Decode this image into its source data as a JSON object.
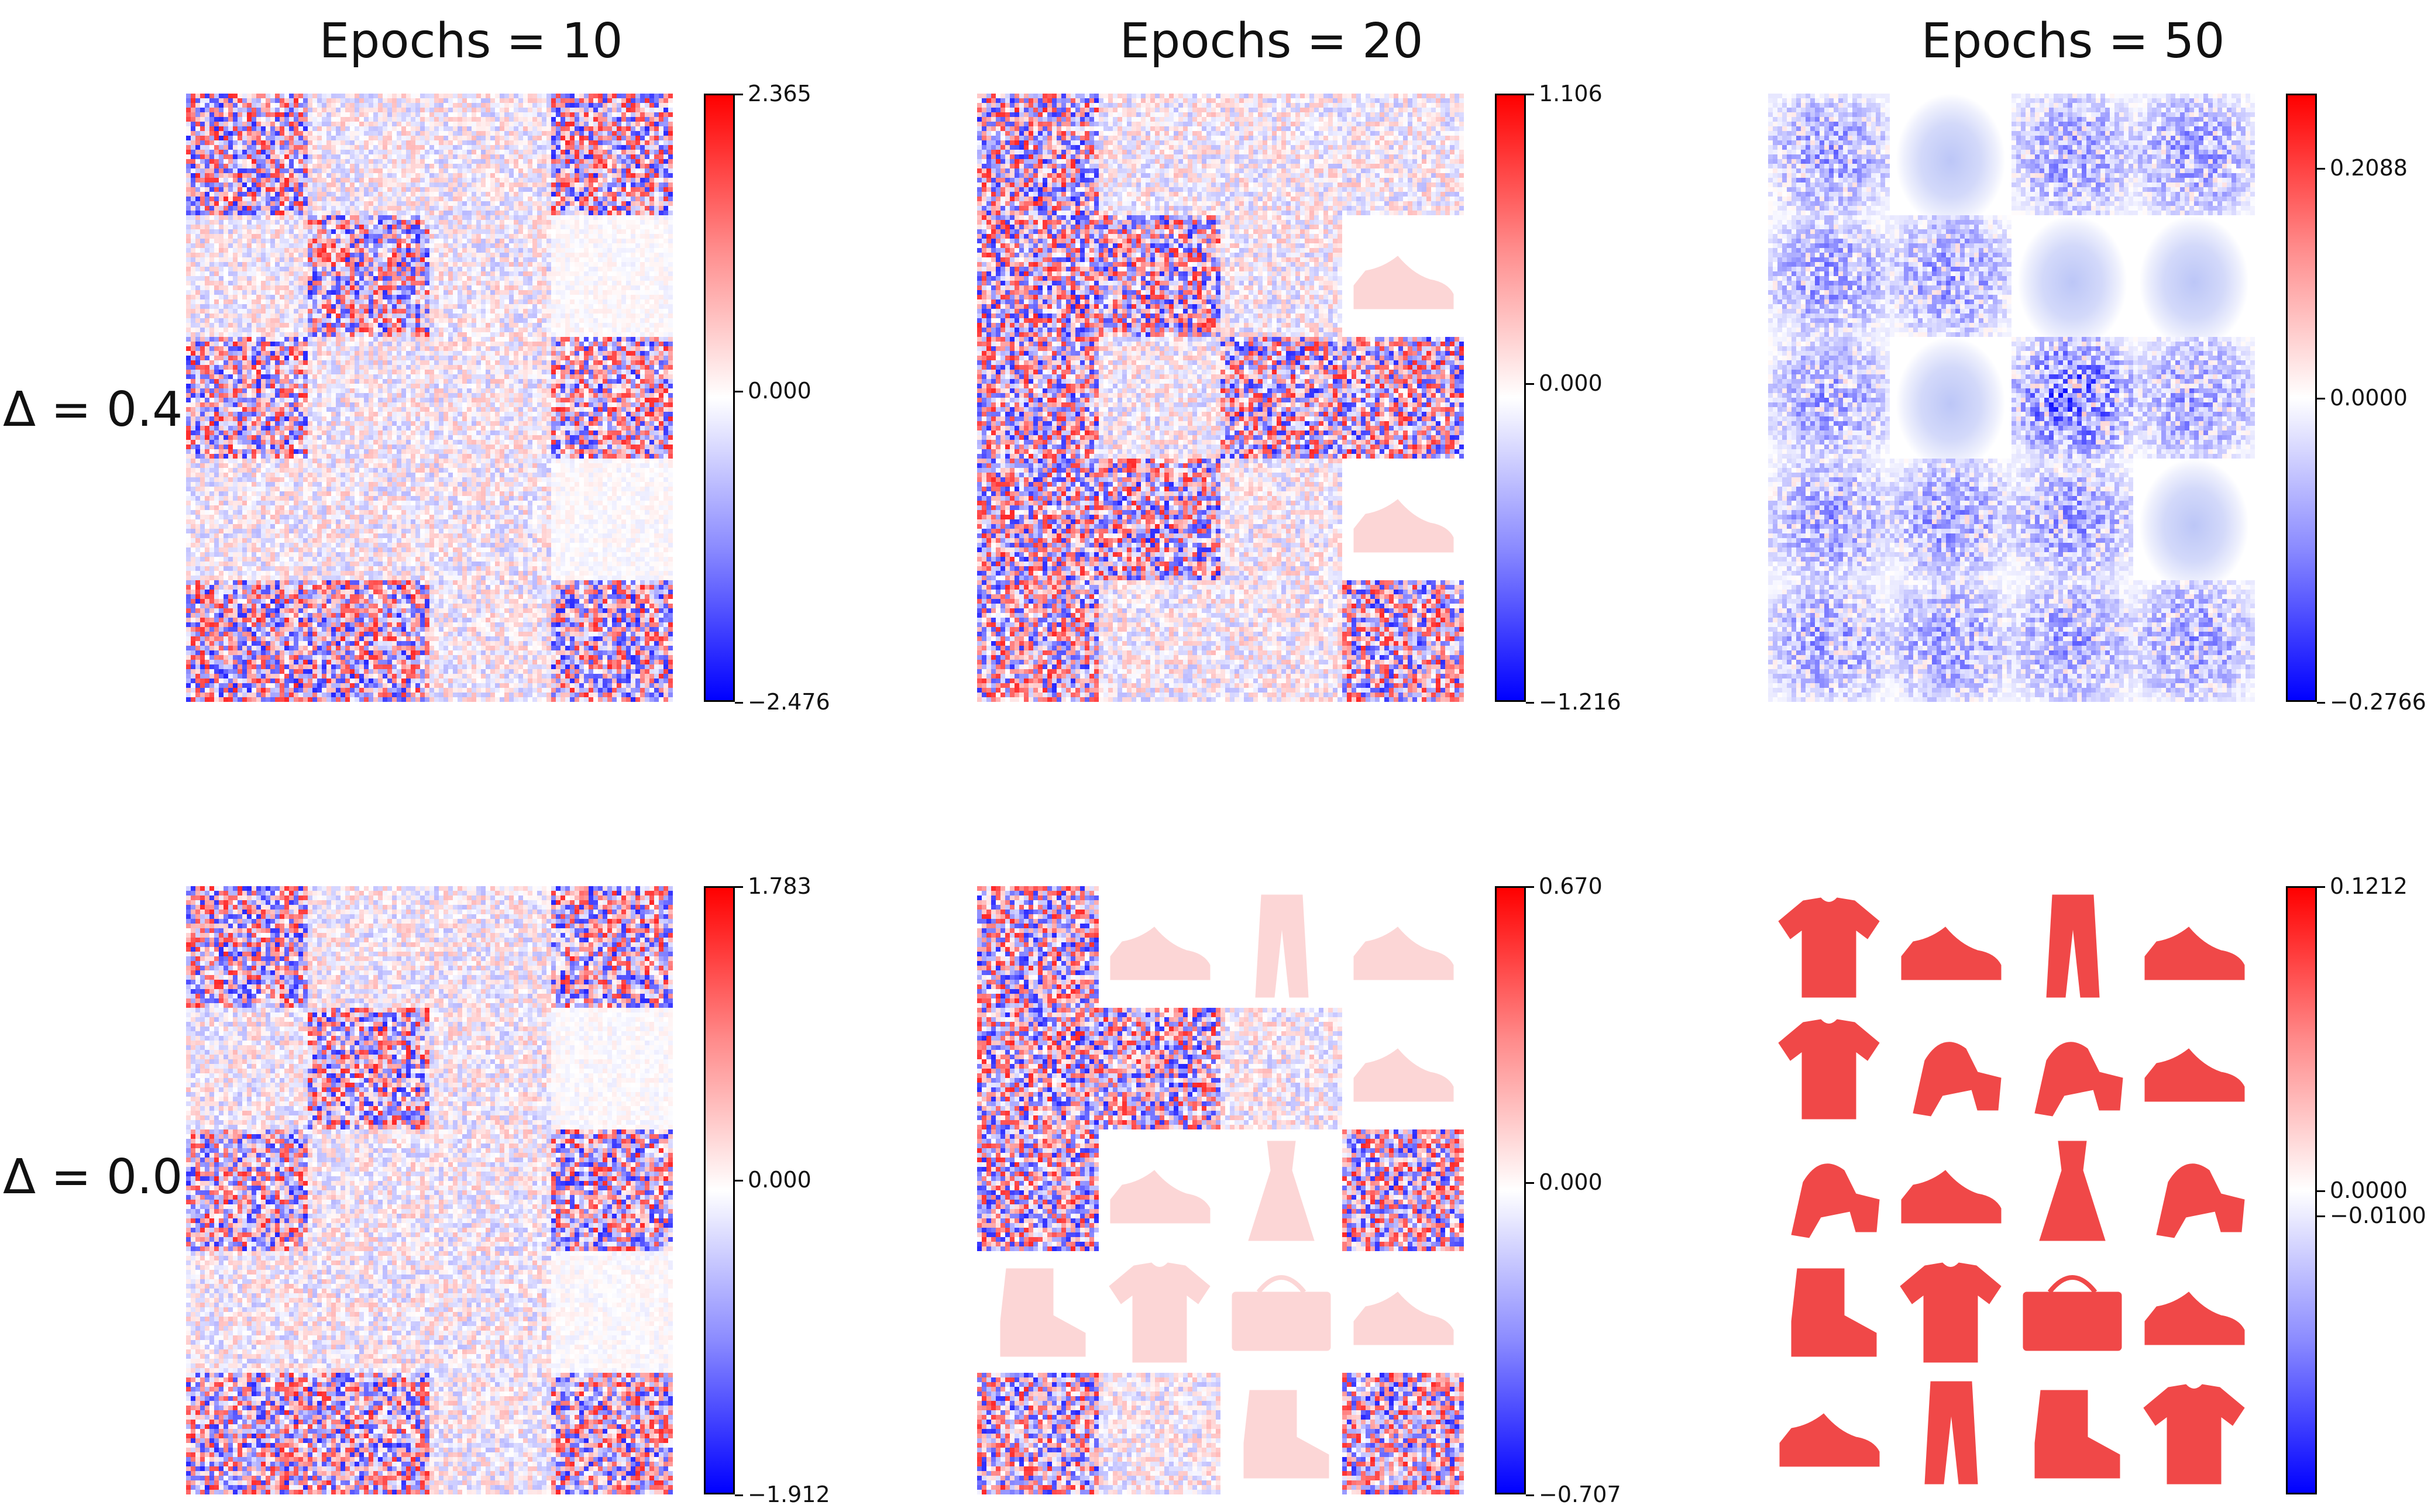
{
  "chart_data": {
    "type": "heatmap",
    "columns": [
      "Epochs = 10",
      "Epochs = 20",
      "Epochs = 50"
    ],
    "rows": [
      "Δ = 0.4",
      "Δ = 0.0"
    ],
    "grid": {
      "rows": 5,
      "cols": 4
    },
    "colormap": "bwr",
    "panels": [
      {
        "row": 0,
        "col": 0,
        "colorbar": {
          "max": 2.365,
          "min": -2.476,
          "ticks": [
            "2.365",
            "0.000",
            "−2.476"
          ],
          "tick_values": [
            2.365,
            0,
            -2.476
          ]
        },
        "cells": [
          [
            "noise",
            "faint",
            "faint",
            "noise"
          ],
          [
            "faint",
            "noise",
            "faint",
            "faint-flat"
          ],
          [
            "noise",
            "faint",
            "faint",
            "noise"
          ],
          [
            "faint",
            "faint",
            "faint",
            "faint-flat"
          ],
          [
            "noise",
            "noise",
            "faint",
            "noise"
          ]
        ]
      },
      {
        "row": 0,
        "col": 1,
        "colorbar": {
          "max": 1.106,
          "min": -1.216,
          "ticks": [
            "1.106",
            "0.000",
            "−1.216"
          ],
          "tick_values": [
            1.106,
            0,
            -1.216
          ]
        },
        "cells": [
          [
            "noise",
            "faint",
            "faint",
            "faint"
          ],
          [
            "noise",
            "noise",
            "faint",
            "shoe"
          ],
          [
            "noise",
            "faint",
            "noise",
            "noise"
          ],
          [
            "noise",
            "noise",
            "faint",
            "shoe"
          ],
          [
            "noise",
            "faint",
            "faint",
            "noise"
          ]
        ]
      },
      {
        "row": 0,
        "col": 2,
        "colorbar": {
          "max": 0.2766,
          "min": -0.2766,
          "ticks": [
            "0.2088",
            "0.0000",
            "−0.2766"
          ],
          "tick_values": [
            0.2088,
            0,
            -0.2766
          ]
        },
        "cells": [
          [
            "blue-noise",
            "blue-blob",
            "blue-noise",
            "blue-noise"
          ],
          [
            "blue-noise",
            "blue-noise",
            "blue-blob",
            "blue-blob"
          ],
          [
            "blue-noise",
            "blue-blob",
            "blue-noise-strong",
            "blue-noise"
          ],
          [
            "blue-noise",
            "blue-noise",
            "blue-noise",
            "blue-blob"
          ],
          [
            "blue-noise",
            "blue-noise",
            "blue-noise",
            "blue-noise"
          ]
        ]
      },
      {
        "row": 1,
        "col": 0,
        "colorbar": {
          "max": 1.783,
          "min": -1.912,
          "ticks": [
            "1.783",
            "0.000",
            "−1.912"
          ],
          "tick_values": [
            1.783,
            0,
            -1.912
          ]
        },
        "cells": [
          [
            "noise",
            "faint",
            "faint",
            "noise"
          ],
          [
            "faint",
            "noise",
            "faint",
            "faint-flat"
          ],
          [
            "noise",
            "faint",
            "faint",
            "noise"
          ],
          [
            "faint",
            "faint",
            "faint",
            "faint-flat"
          ],
          [
            "noise",
            "noise",
            "faint",
            "noise"
          ]
        ]
      },
      {
        "row": 1,
        "col": 1,
        "colorbar": {
          "max": 0.67,
          "min": -0.707,
          "ticks": [
            "0.670",
            "0.000",
            "−0.707"
          ],
          "tick_values": [
            0.67,
            0,
            -0.707
          ]
        },
        "cells": [
          [
            "noise",
            "shoe",
            "trousers",
            "shoe"
          ],
          [
            "noise",
            "noise",
            "faint",
            "shoe"
          ],
          [
            "noise",
            "shoe",
            "dress",
            "noise"
          ],
          [
            "boot",
            "shirt",
            "bag",
            "shoe"
          ],
          [
            "noise",
            "faint",
            "boot",
            "noise"
          ]
        ]
      },
      {
        "row": 1,
        "col": 2,
        "colorbar": {
          "max": 0.1212,
          "min": -0.1212,
          "ticks": [
            "0.1212",
            "0.0000",
            "−0.0100"
          ],
          "tick_values": [
            0.1212,
            0,
            -0.01
          ]
        },
        "cells": [
          [
            "shirt",
            "shoe",
            "trousers",
            "shoe"
          ],
          [
            "shirt",
            "sandal",
            "sandal",
            "shoe"
          ],
          [
            "sandal",
            "shoe",
            "dress",
            "sandal"
          ],
          [
            "boot",
            "shirt",
            "bag",
            "shoe"
          ],
          [
            "shoe",
            "trousers",
            "boot",
            "shirt"
          ]
        ]
      }
    ]
  }
}
